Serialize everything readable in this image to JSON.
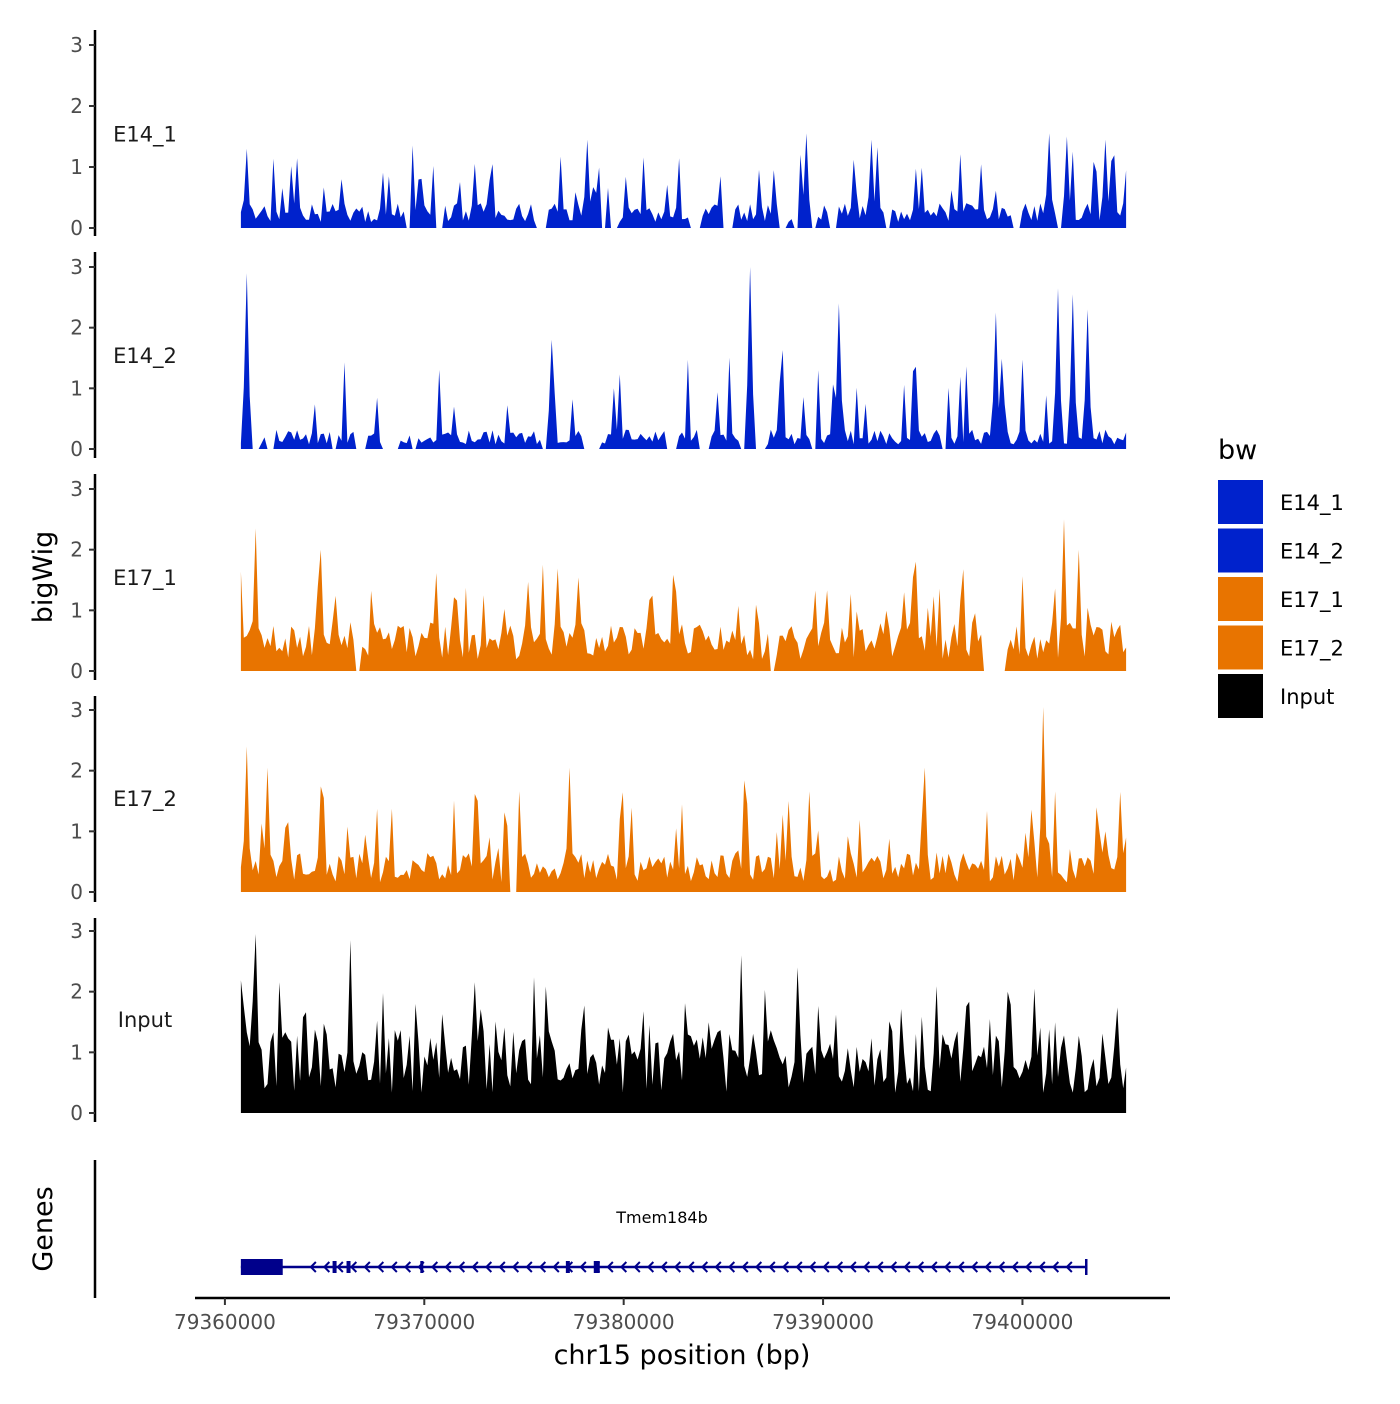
{
  "chart_data": {
    "type": "area",
    "title": "",
    "ylabel": "bigWig",
    "xlabel": "chr15 position (bp)",
    "genes_label": "Genes",
    "x_range": [
      79360800,
      79405200
    ],
    "xlim": [
      79358500,
      79407400
    ],
    "ylim": [
      0,
      3.2
    ],
    "yticks": [
      0,
      1,
      2,
      3
    ],
    "xticks": [
      79360000,
      79370000,
      79380000,
      79390000,
      79400000
    ],
    "xtick_labels": [
      "79360000",
      "79370000",
      "79380000",
      "79390000",
      "79400000"
    ],
    "legend": {
      "title": "bw",
      "placement": "right",
      "entries": [
        {
          "label": "E14_1",
          "color": "#0022cc"
        },
        {
          "label": "E14_2",
          "color": "#0022cc"
        },
        {
          "label": "E17_1",
          "color": "#e87400"
        },
        {
          "label": "E17_2",
          "color": "#e87400"
        },
        {
          "label": "Input",
          "color": "#000000"
        }
      ]
    },
    "series": [
      {
        "name": "E14_1",
        "color": "#0022cc",
        "seed": 11,
        "base": 0.28,
        "spike_prob": 0.16,
        "spike_height": 0.95,
        "max": 1.58,
        "gap_prob": 0.17,
        "peaks": [
          [
            79361100,
            1.3
          ],
          [
            79372600,
            1.05
          ],
          [
            79378200,
            1.45
          ],
          [
            79389200,
            1.55
          ],
          [
            79392500,
            1.45
          ],
          [
            79401300,
            1.55
          ],
          [
            79402200,
            1.5
          ],
          [
            79404100,
            1.45
          ]
        ]
      },
      {
        "name": "E14_2",
        "color": "#0022cc",
        "seed": 23,
        "base": 0.22,
        "spike_prob": 0.14,
        "spike_height": 1.15,
        "max": 3.0,
        "gap_prob": 0.2,
        "peaks": [
          [
            79361100,
            2.9
          ],
          [
            79376400,
            1.8
          ],
          [
            79386300,
            3.0
          ],
          [
            79390800,
            2.4
          ],
          [
            79398600,
            2.25
          ],
          [
            79401800,
            2.65
          ],
          [
            79402600,
            2.55
          ],
          [
            79403300,
            2.3
          ]
        ]
      },
      {
        "name": "E17_1",
        "color": "#e87400",
        "seed": 37,
        "base": 0.55,
        "spike_prob": 0.16,
        "spike_height": 0.85,
        "max": 2.5,
        "gap_prob": 0.05,
        "peaks": [
          [
            79361500,
            2.35
          ],
          [
            79364800,
            2.0
          ],
          [
            79376000,
            1.75
          ],
          [
            79394600,
            1.8
          ],
          [
            79402100,
            2.5
          ],
          [
            79402800,
            2.0
          ]
        ]
      },
      {
        "name": "E17_2",
        "color": "#e87400",
        "seed": 41,
        "base": 0.45,
        "spike_prob": 0.16,
        "spike_height": 1.0,
        "max": 3.1,
        "gap_prob": 0.05,
        "peaks": [
          [
            79361100,
            2.4
          ],
          [
            79362200,
            2.05
          ],
          [
            79377300,
            2.05
          ],
          [
            79395100,
            2.05
          ],
          [
            79401100,
            3.05
          ],
          [
            79404900,
            1.65
          ]
        ]
      },
      {
        "name": "Input",
        "color": "#000000",
        "seed": 53,
        "base": 0.95,
        "spike_prob": 0.18,
        "spike_height": 0.85,
        "max": 3.0,
        "gap_prob": 0.0,
        "peaks": [
          [
            79361500,
            2.95
          ],
          [
            79366300,
            2.85
          ],
          [
            79385900,
            2.6
          ],
          [
            79388700,
            2.4
          ],
          [
            79399300,
            2.0
          ],
          [
            79400600,
            2.05
          ]
        ]
      }
    ],
    "gene": {
      "name": "Tmem184b",
      "strand": "-",
      "start": 79360800,
      "end": 79403200,
      "color": "#00008b",
      "exons": [
        [
          79360800,
          79362900
        ],
        [
          79365400,
          79365600
        ],
        [
          79366100,
          79366300
        ],
        [
          79369800,
          79369950
        ],
        [
          79377100,
          79377300
        ],
        [
          79378500,
          79378800
        ]
      ]
    }
  }
}
